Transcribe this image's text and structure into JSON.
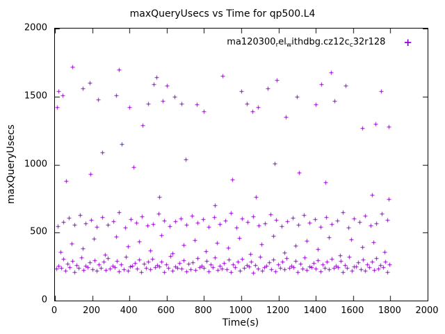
{
  "chart_data": {
    "type": "scatter",
    "title": "maxQueryUsecs vs Time for qp500.L4",
    "xlabel": "Time(s)",
    "ylabel": "maxQueryUsecs",
    "xlim": [
      0,
      2000
    ],
    "ylim": [
      0,
      2000
    ],
    "xticks": [
      0,
      200,
      400,
      600,
      800,
      1000,
      1200,
      1400,
      1600,
      1800,
      2000
    ],
    "yticks": [
      0,
      500,
      1000,
      1500,
      2000
    ],
    "grid": false,
    "legend_position": "top-right-inside",
    "marker": "plus",
    "marker_glyph": "+",
    "color": "#9400d3",
    "series": [
      {
        "name": "ma120300_rel_withdbg.cz12c_c32r128",
        "name_parts": [
          {
            "text": "ma120300"
          },
          {
            "text": "r",
            "sub": true
          },
          {
            "text": "el"
          },
          {
            "text": "w",
            "sub": true
          },
          {
            "text": "ithdbg.cz12c"
          },
          {
            "text": "c",
            "sub": true
          },
          {
            "text": "32r128"
          }
        ],
        "points": [
          [
            8,
            235
          ],
          [
            20,
            258
          ],
          [
            32,
            242
          ],
          [
            44,
            305
          ],
          [
            56,
            221
          ],
          [
            68,
            270
          ],
          [
            80,
            248
          ],
          [
            92,
            290
          ],
          [
            104,
            210
          ],
          [
            116,
            262
          ],
          [
            128,
            238
          ],
          [
            140,
            315
          ],
          [
            152,
            226
          ],
          [
            164,
            254
          ],
          [
            176,
            246
          ],
          [
            188,
            280
          ],
          [
            200,
            232
          ],
          [
            212,
            298
          ],
          [
            224,
            218
          ],
          [
            236,
            266
          ],
          [
            248,
            240
          ],
          [
            260,
            285
          ],
          [
            272,
            224
          ],
          [
            284,
            310
          ],
          [
            296,
            236
          ],
          [
            308,
            258
          ],
          [
            320,
            244
          ],
          [
            332,
            292
          ],
          [
            344,
            215
          ],
          [
            356,
            268
          ],
          [
            368,
            230
          ],
          [
            380,
            320
          ],
          [
            392,
            222
          ],
          [
            404,
            250
          ],
          [
            416,
            256
          ],
          [
            428,
            276
          ],
          [
            440,
            234
          ],
          [
            452,
            302
          ],
          [
            464,
            212
          ],
          [
            476,
            272
          ],
          [
            488,
            238
          ],
          [
            500,
            288
          ],
          [
            512,
            228
          ],
          [
            524,
            308
          ],
          [
            536,
            244
          ],
          [
            548,
            260
          ],
          [
            560,
            250
          ],
          [
            572,
            286
          ],
          [
            584,
            208
          ],
          [
            596,
            264
          ],
          [
            608,
            242
          ],
          [
            620,
            325
          ],
          [
            632,
            218
          ],
          [
            644,
            252
          ],
          [
            656,
            240
          ],
          [
            668,
            278
          ],
          [
            680,
            236
          ],
          [
            692,
            296
          ],
          [
            704,
            214
          ],
          [
            716,
            270
          ],
          [
            728,
            232
          ],
          [
            740,
            282
          ],
          [
            752,
            226
          ],
          [
            764,
            312
          ],
          [
            776,
            248
          ],
          [
            788,
            256
          ],
          [
            800,
            238
          ],
          [
            812,
            294
          ],
          [
            824,
            216
          ],
          [
            836,
            266
          ],
          [
            848,
            244
          ],
          [
            860,
            318
          ],
          [
            872,
            224
          ],
          [
            884,
            258
          ],
          [
            896,
            236
          ],
          [
            908,
            274
          ],
          [
            920,
            230
          ],
          [
            932,
            300
          ],
          [
            944,
            210
          ],
          [
            956,
            268
          ],
          [
            968,
            246
          ],
          [
            980,
            284
          ],
          [
            992,
            222
          ],
          [
            1004,
            306
          ],
          [
            1016,
            240
          ],
          [
            1028,
            262
          ],
          [
            1040,
            252
          ],
          [
            1052,
            288
          ],
          [
            1064,
            206
          ],
          [
            1076,
            260
          ],
          [
            1088,
            234
          ],
          [
            1100,
            322
          ],
          [
            1112,
            220
          ],
          [
            1124,
            248
          ],
          [
            1136,
            254
          ],
          [
            1148,
            282
          ],
          [
            1160,
            228
          ],
          [
            1172,
            304
          ],
          [
            1184,
            216
          ],
          [
            1196,
            264
          ],
          [
            1208,
            242
          ],
          [
            1220,
            286
          ],
          [
            1232,
            230
          ],
          [
            1244,
            314
          ],
          [
            1256,
            238
          ],
          [
            1268,
            256
          ],
          [
            1280,
            246
          ],
          [
            1292,
            290
          ],
          [
            1304,
            212
          ],
          [
            1316,
            270
          ],
          [
            1328,
            236
          ],
          [
            1340,
            316
          ],
          [
            1352,
            226
          ],
          [
            1364,
            252
          ],
          [
            1376,
            244
          ],
          [
            1388,
            278
          ],
          [
            1400,
            234
          ],
          [
            1412,
            296
          ],
          [
            1424,
            214
          ],
          [
            1436,
            266
          ],
          [
            1448,
            240
          ],
          [
            1460,
            284
          ],
          [
            1472,
            228
          ],
          [
            1484,
            308
          ],
          [
            1496,
            242
          ],
          [
            1508,
            258
          ],
          [
            1520,
            248
          ],
          [
            1532,
            292
          ],
          [
            1544,
            210
          ],
          [
            1556,
            262
          ],
          [
            1568,
            238
          ],
          [
            1580,
            320
          ],
          [
            1592,
            222
          ],
          [
            1604,
            250
          ],
          [
            1616,
            252
          ],
          [
            1628,
            280
          ],
          [
            1640,
            232
          ],
          [
            1652,
            302
          ],
          [
            1664,
            218
          ],
          [
            1676,
            268
          ],
          [
            1688,
            244
          ],
          [
            1700,
            288
          ],
          [
            1712,
            224
          ],
          [
            1724,
            310
          ],
          [
            1736,
            236
          ],
          [
            1748,
            260
          ],
          [
            1760,
            246
          ],
          [
            1772,
            286
          ],
          [
            1784,
            208
          ],
          [
            1796,
            264
          ],
          [
            30,
            360
          ],
          [
            90,
            420
          ],
          [
            150,
            385
          ],
          [
            210,
            455
          ],
          [
            270,
            340
          ],
          [
            330,
            470
          ],
          [
            390,
            400
          ],
          [
            450,
            435
          ],
          [
            510,
            370
          ],
          [
            570,
            480
          ],
          [
            630,
            350
          ],
          [
            690,
            410
          ],
          [
            750,
            445
          ],
          [
            810,
            365
          ],
          [
            870,
            425
          ],
          [
            930,
            390
          ],
          [
            990,
            460
          ],
          [
            1050,
            345
          ],
          [
            1110,
            415
          ],
          [
            1170,
            475
          ],
          [
            1230,
            355
          ],
          [
            1290,
            405
          ],
          [
            1350,
            440
          ],
          [
            1410,
            380
          ],
          [
            1470,
            465
          ],
          [
            1530,
            335
          ],
          [
            1590,
            450
          ],
          [
            1650,
            395
          ],
          [
            1710,
            430
          ],
          [
            1770,
            360
          ],
          [
            15,
            545
          ],
          [
            45,
            580
          ],
          [
            75,
            610
          ],
          [
            105,
            555
          ],
          [
            135,
            630
          ],
          [
            165,
            570
          ],
          [
            195,
            595
          ],
          [
            225,
            540
          ],
          [
            255,
            615
          ],
          [
            285,
            560
          ],
          [
            315,
            585
          ],
          [
            345,
            650
          ],
          [
            375,
            535
          ],
          [
            405,
            600
          ],
          [
            435,
            575
          ],
          [
            465,
            620
          ],
          [
            495,
            550
          ],
          [
            525,
            565
          ],
          [
            555,
            640
          ],
          [
            585,
            590
          ],
          [
            615,
            548
          ],
          [
            645,
            582
          ],
          [
            675,
            606
          ],
          [
            705,
            558
          ],
          [
            735,
            625
          ],
          [
            765,
            572
          ],
          [
            795,
            598
          ],
          [
            825,
            542
          ],
          [
            855,
            612
          ],
          [
            885,
            562
          ],
          [
            915,
            588
          ],
          [
            945,
            645
          ],
          [
            975,
            538
          ],
          [
            1005,
            602
          ],
          [
            1035,
            578
          ],
          [
            1065,
            618
          ],
          [
            1095,
            552
          ],
          [
            1125,
            568
          ],
          [
            1155,
            635
          ],
          [
            1185,
            592
          ],
          [
            1215,
            546
          ],
          [
            1245,
            584
          ],
          [
            1275,
            608
          ],
          [
            1305,
            556
          ],
          [
            1335,
            628
          ],
          [
            1365,
            574
          ],
          [
            1395,
            596
          ],
          [
            1425,
            544
          ],
          [
            1455,
            614
          ],
          [
            1485,
            564
          ],
          [
            1515,
            586
          ],
          [
            1545,
            648
          ],
          [
            1575,
            536
          ],
          [
            1605,
            604
          ],
          [
            1635,
            576
          ],
          [
            1665,
            622
          ],
          [
            1695,
            554
          ],
          [
            1725,
            566
          ],
          [
            1755,
            638
          ],
          [
            1785,
            594
          ],
          [
            60,
            880
          ],
          [
            190,
            930
          ],
          [
            255,
            1090
          ],
          [
            360,
            1150
          ],
          [
            420,
            980
          ],
          [
            560,
            760
          ],
          [
            700,
            1040
          ],
          [
            860,
            700
          ],
          [
            950,
            890
          ],
          [
            1080,
            760
          ],
          [
            1180,
            1010
          ],
          [
            1310,
            940
          ],
          [
            1450,
            870
          ],
          [
            1700,
            780
          ],
          [
            1790,
            745
          ],
          [
            10,
            1420
          ],
          [
            18,
            1540
          ],
          [
            40,
            1510
          ],
          [
            95,
            1720
          ],
          [
            150,
            1560
          ],
          [
            185,
            1600
          ],
          [
            230,
            1480
          ],
          [
            330,
            1510
          ],
          [
            345,
            1700
          ],
          [
            400,
            1420
          ],
          [
            470,
            1290
          ],
          [
            500,
            1450
          ],
          [
            530,
            1590
          ],
          [
            545,
            1640
          ],
          [
            580,
            1470
          ],
          [
            600,
            1580
          ],
          [
            640,
            1500
          ],
          [
            680,
            1450
          ],
          [
            760,
            1440
          ],
          [
            800,
            1390
          ],
          [
            900,
            1650
          ],
          [
            1000,
            1540
          ],
          [
            1030,
            1450
          ],
          [
            1060,
            1390
          ],
          [
            1090,
            1420
          ],
          [
            1140,
            1560
          ],
          [
            1190,
            1620
          ],
          [
            1240,
            1350
          ],
          [
            1300,
            1500
          ],
          [
            1400,
            1440
          ],
          [
            1430,
            1590
          ],
          [
            1480,
            1680
          ],
          [
            1500,
            1470
          ],
          [
            1560,
            1580
          ],
          [
            1650,
            1270
          ],
          [
            1720,
            1300
          ],
          [
            1750,
            1540
          ],
          [
            1790,
            1280
          ]
        ]
      }
    ]
  }
}
